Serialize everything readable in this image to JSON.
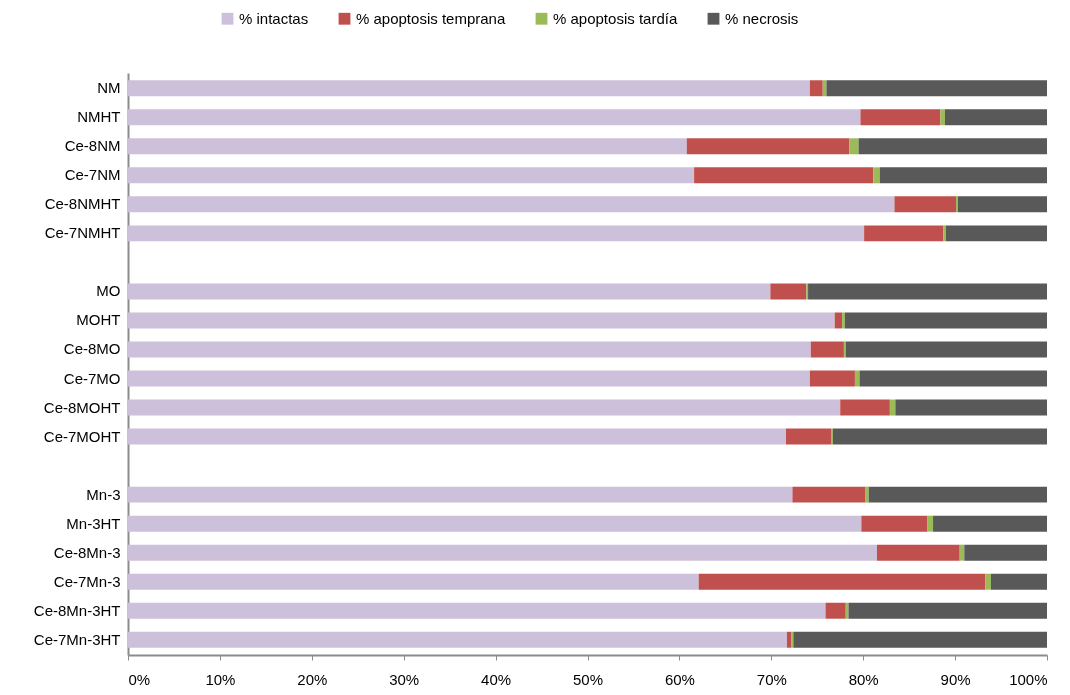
{
  "chart_data": {
    "type": "bar",
    "orientation": "horizontal",
    "stacked": true,
    "legend": "top",
    "grid": false,
    "categories": [
      "NM",
      "NMHT",
      "Ce-8NM",
      "Ce-7NM",
      "Ce-8NMHT",
      "Ce-7NMHT",
      null,
      "MO",
      "MOHT",
      "Ce-8MO",
      "Ce-7MO",
      "Ce-8MOHT",
      "Ce-7MOHT",
      null,
      "Mn-3",
      "Mn-3HT",
      "Ce-8Mn-3",
      "Ce-7Mn-3",
      "Ce-8Mn-3HT",
      "Ce-7Mn-3HT"
    ],
    "xlim": [
      0,
      100
    ],
    "xticks": [
      {
        "value": 0,
        "label": "0%"
      },
      {
        "value": 10,
        "label": "10%"
      },
      {
        "value": 20,
        "label": "20%"
      },
      {
        "value": 30,
        "label": "30%"
      },
      {
        "value": 40,
        "label": "40%"
      },
      {
        "value": 50,
        "label": "50%"
      },
      {
        "value": 60,
        "label": "60%"
      },
      {
        "value": 70,
        "label": "70%"
      },
      {
        "value": 80,
        "label": "80%"
      },
      {
        "value": 90,
        "label": "90%"
      },
      {
        "value": 100,
        "label": "100%"
      }
    ],
    "series": [
      {
        "name": "% intactas",
        "color": "#ccc0da",
        "values": [
          74.2,
          79.7,
          60.8,
          61.6,
          83.4,
          80.1,
          null,
          69.9,
          76.9,
          74.3,
          74.2,
          77.5,
          71.6,
          null,
          72.3,
          79.8,
          81.5,
          62.1,
          75.9,
          71.7
        ]
      },
      {
        "name": "% apoptosis temprana",
        "color": "#c0504d",
        "values": [
          1.4,
          8.7,
          17.7,
          19.5,
          6.7,
          8.6,
          null,
          3.9,
          0.8,
          3.6,
          4.9,
          5.4,
          4.9,
          null,
          7.9,
          7.2,
          9.0,
          31.2,
          2.2,
          0.5
        ]
      },
      {
        "name": "% apoptosis tardía",
        "color": "#9bbb59",
        "values": [
          0.4,
          0.5,
          1.0,
          0.7,
          0.2,
          0.3,
          null,
          0.2,
          0.3,
          0.2,
          0.5,
          0.6,
          0.2,
          null,
          0.4,
          0.6,
          0.5,
          0.6,
          0.3,
          0.2
        ]
      },
      {
        "name": "% necrosis",
        "color": "#595959",
        "values": [
          24.0,
          11.1,
          20.5,
          18.2,
          9.7,
          11.0,
          null,
          26.0,
          22.0,
          21.9,
          20.4,
          16.5,
          23.3,
          null,
          19.4,
          12.4,
          9.0,
          6.1,
          21.6,
          27.6
        ]
      }
    ]
  }
}
